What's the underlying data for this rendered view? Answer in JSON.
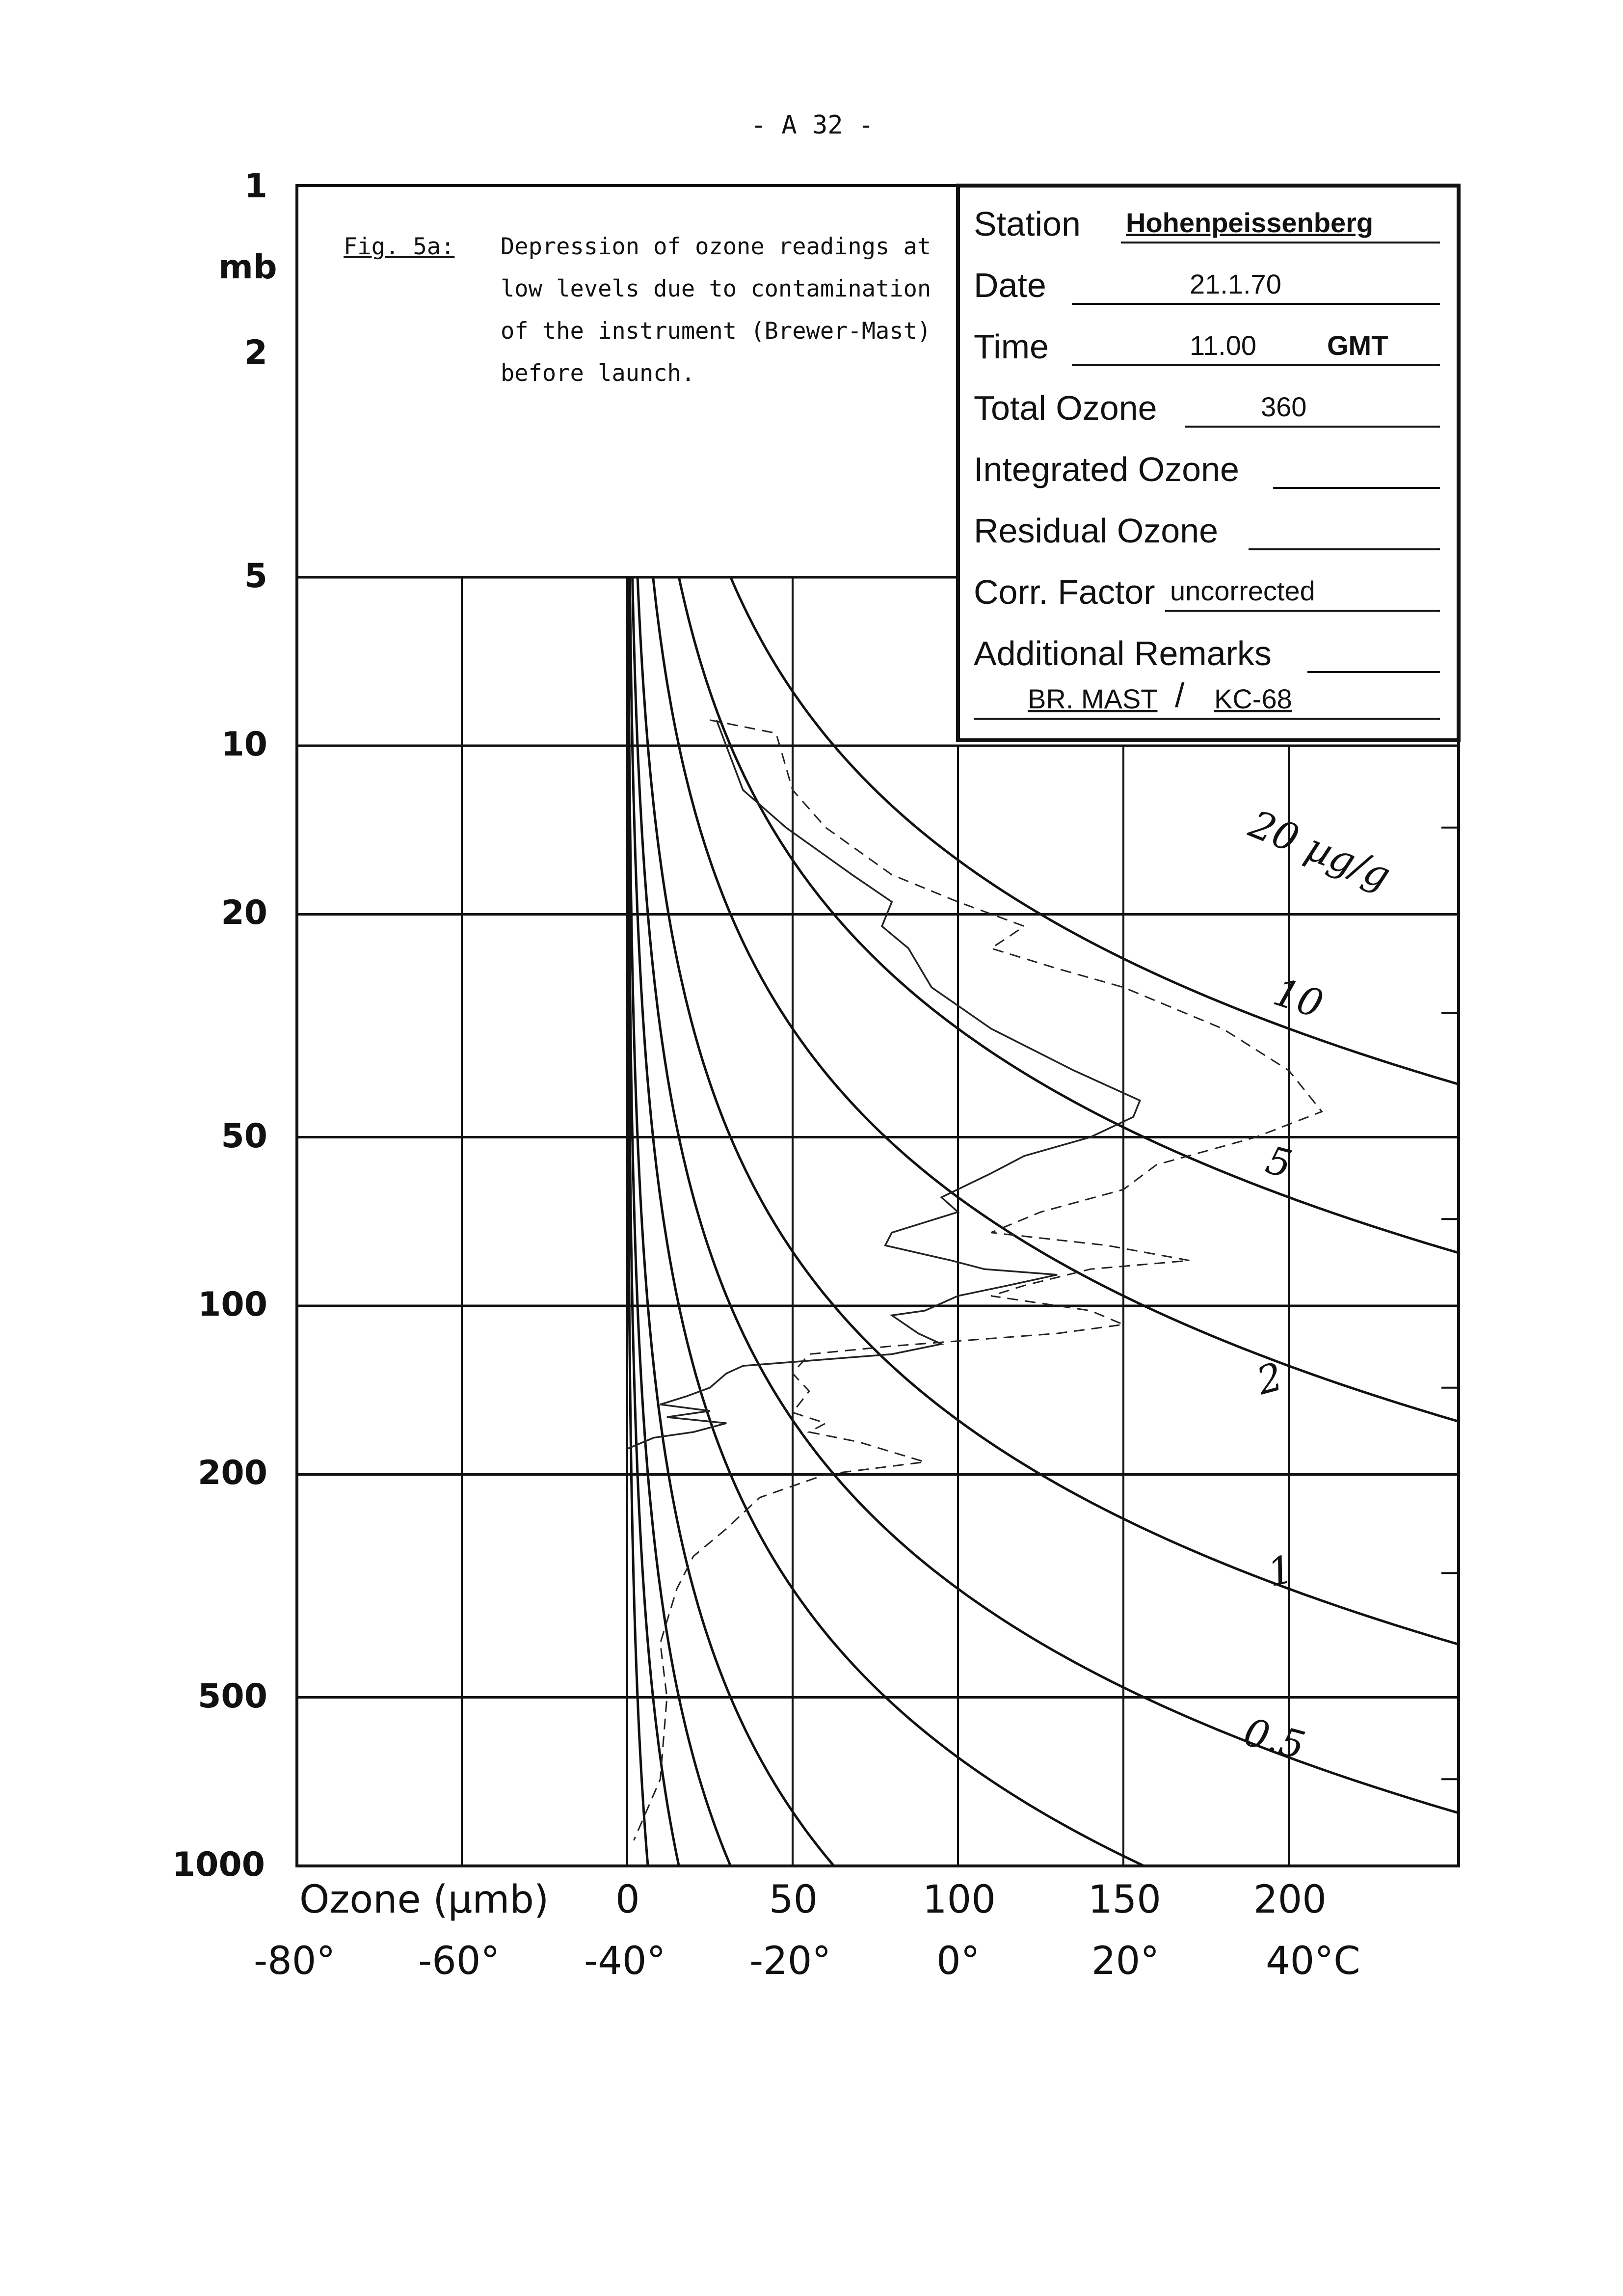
{
  "page": {
    "number": "- A 32 -"
  },
  "caption": {
    "label": "Fig. 5a:",
    "text": "Depression of ozone readings at low levels due to contamination of the instrument (Brewer-Mast) before launch."
  },
  "station": {
    "station_label": "Station",
    "station_value": "Hohenpeissenberg",
    "date_label": "Date",
    "date_value": "21.1.70",
    "time_label": "Time",
    "time_value": "11.00",
    "time_unit": "GMT",
    "total_label": "Total Ozone",
    "total_value": "360",
    "integrated_label": "Integrated Ozone",
    "integrated_value": "",
    "residual_label": "Residual Ozone",
    "residual_value": "",
    "corr_label": "Corr. Factor",
    "corr_value": "uncorrected",
    "remarks_label": "Additional Remarks",
    "remarks_value_1": "BR. MAST",
    "remarks_sep": "/",
    "remarks_value_2": "KC-68"
  },
  "chart_data": {
    "type": "line",
    "title": "Fig. 5a: Depression of ozone readings at low levels due to contamination of the instrument (Brewer-Mast) before launch.",
    "ylabel": "mb",
    "y_scale": "log",
    "ylim": [
      1000,
      1
    ],
    "y_ticks": [
      "1",
      "2",
      "5",
      "10",
      "20",
      "50",
      "100",
      "200",
      "500",
      "1000"
    ],
    "y_tick_values": [
      1,
      2,
      5,
      10,
      20,
      50,
      100,
      200,
      500,
      1000
    ],
    "xlabel": "Ozone (µmb)",
    "xlim": [
      -100,
      250
    ],
    "x_ticks_ozone": [
      "0",
      "50",
      "100",
      "150",
      "200"
    ],
    "x_tick_values_ozone": [
      0,
      50,
      100,
      150,
      200
    ],
    "x_ticks_temperature": [
      "-80°",
      "-60°",
      "-40°",
      "-20°",
      "0°",
      "20°",
      "40°C"
    ],
    "mixing_ratio_lines": [
      {
        "label": "20 µg/g",
        "ratio": 20
      },
      {
        "label": "10",
        "ratio": 10
      },
      {
        "label": "5",
        "ratio": 5
      },
      {
        "label": "2",
        "ratio": 2
      },
      {
        "label": "1",
        "ratio": 1
      },
      {
        "label": "0.5",
        "ratio": 0.5
      },
      {
        "label": "",
        "ratio": 0.2
      },
      {
        "label": "",
        "ratio": 0.1
      },
      {
        "label": "",
        "ratio": 0.05
      },
      {
        "label": "",
        "ratio": 0.02
      }
    ],
    "series": [
      {
        "name": "Ozone partial pressure (solid)",
        "style": "solid",
        "points": [
          [
            27,
            9
          ],
          [
            35,
            12
          ],
          [
            48,
            14
          ],
          [
            68,
            17
          ],
          [
            80,
            19
          ],
          [
            77,
            21
          ],
          [
            85,
            23
          ],
          [
            92,
            27
          ],
          [
            110,
            32
          ],
          [
            135,
            38
          ],
          [
            155,
            43
          ],
          [
            153,
            46
          ],
          [
            140,
            50
          ],
          [
            120,
            54
          ],
          [
            110,
            58
          ],
          [
            95,
            64
          ],
          [
            100,
            68
          ],
          [
            80,
            74
          ],
          [
            78,
            78
          ],
          [
            98,
            83
          ],
          [
            108,
            86
          ],
          [
            130,
            88
          ],
          [
            115,
            92
          ],
          [
            100,
            96
          ],
          [
            90,
            102
          ],
          [
            80,
            104
          ],
          [
            88,
            112
          ],
          [
            95,
            117
          ],
          [
            80,
            122
          ],
          [
            35,
            128
          ],
          [
            30,
            132
          ],
          [
            25,
            140
          ],
          [
            18,
            145
          ],
          [
            10,
            150
          ],
          [
            25,
            154
          ],
          [
            12,
            158
          ],
          [
            30,
            162
          ],
          [
            20,
            168
          ],
          [
            8,
            172
          ],
          [
            0,
            180
          ]
        ]
      },
      {
        "name": "Ozone partial pressure (dashed)",
        "style": "dashed",
        "points": [
          [
            25,
            9
          ],
          [
            45,
            9.5
          ],
          [
            50,
            12
          ],
          [
            60,
            14
          ],
          [
            80,
            17
          ],
          [
            100,
            19
          ],
          [
            120,
            21
          ],
          [
            115,
            22
          ],
          [
            110,
            23
          ],
          [
            130,
            25
          ],
          [
            150,
            27
          ],
          [
            180,
            32
          ],
          [
            200,
            38
          ],
          [
            210,
            45
          ],
          [
            190,
            50
          ],
          [
            160,
            56
          ],
          [
            150,
            62
          ],
          [
            125,
            68
          ],
          [
            110,
            74
          ],
          [
            145,
            78
          ],
          [
            170,
            83
          ],
          [
            140,
            86
          ],
          [
            120,
            92
          ],
          [
            110,
            96
          ],
          [
            140,
            102
          ],
          [
            150,
            108
          ],
          [
            130,
            112
          ],
          [
            80,
            118
          ],
          [
            55,
            122
          ],
          [
            50,
            132
          ],
          [
            55,
            142
          ],
          [
            50,
            155
          ],
          [
            60,
            162
          ],
          [
            55,
            168
          ],
          [
            70,
            175
          ],
          [
            90,
            190
          ],
          [
            60,
            200
          ],
          [
            40,
            220
          ],
          [
            30,
            250
          ],
          [
            20,
            280
          ],
          [
            15,
            320
          ],
          [
            10,
            400
          ],
          [
            12,
            500
          ],
          [
            10,
            700
          ],
          [
            2,
            900
          ]
        ]
      }
    ]
  }
}
